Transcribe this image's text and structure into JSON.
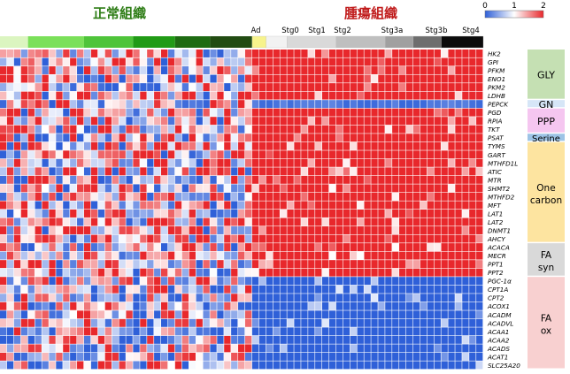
{
  "chart_data": {
    "type": "heatmap",
    "title_normal": "正常組織",
    "title_tumor": "腫瘍組織",
    "colorbar": {
      "ticks": [
        "0",
        "1",
        "2"
      ],
      "colors": [
        "#2f60d8",
        "#ffffff",
        "#e8282c"
      ]
    },
    "normal_sample_count": 36,
    "tumor_sample_count": 33,
    "normal_group_colors": [
      "#dbf5c0",
      "#7be05a",
      "#4fc43a",
      "#219b16",
      "#1e6b12",
      "#224c12"
    ],
    "stages": [
      {
        "label": "Ad",
        "color": "#f7f38c"
      },
      {
        "label": "Stg0",
        "color": "#f2f2f2"
      },
      {
        "label": "Stg1",
        "color": "#d9d9d9"
      },
      {
        "label": "Stg2",
        "color": "#bfbfbf"
      },
      {
        "label": "Stg3a",
        "color": "#a0a0a0"
      },
      {
        "label": "Stg3b",
        "color": "#6e6e6e"
      },
      {
        "label": "Stg4",
        "color": "#0c0c0c"
      }
    ],
    "genes": [
      "HK2",
      "GPI",
      "PFKM",
      "ENO1",
      "PKM2",
      "LDHB",
      "PEPCK",
      "PGD",
      "RPIA",
      "TKT",
      "PSAT",
      "TYMS",
      "GART",
      "MTHFD1L",
      "ATIC",
      "MTR",
      "SHMT2",
      "MTHFD2",
      "MFT",
      "LAT1",
      "LAT2",
      "DNMT1",
      "AHCY",
      "ACACA",
      "MECR",
      "PPT1",
      "PPT2",
      "PGC-1α",
      "CPT1A",
      "CPT2",
      "ACOX1",
      "ACADM",
      "ACADVL",
      "ACAA1",
      "ACAA2",
      "ACADS",
      "ACAT1",
      "SLC25A20"
    ],
    "pathways": [
      {
        "label": "GLY",
        "rows": 6,
        "color": "#c5e0b3"
      },
      {
        "label": "GN",
        "rows": 1,
        "color": "#d6e6f7"
      },
      {
        "label": "PPP",
        "rows": 3,
        "color": "#f5c6f0"
      },
      {
        "label": "Serine",
        "rows": 1,
        "color": "#9dc3e6"
      },
      {
        "label": "One carbon",
        "rows": 12,
        "color": "#fde4a0"
      },
      {
        "label": "FA syn",
        "rows": 4,
        "color": "#d9d9d9"
      },
      {
        "label": "FA ox",
        "rows": 11,
        "color": "#f8d0d0"
      }
    ],
    "pattern": {
      "normal_region": "mixed low/medium/high values (0–2)",
      "tumor_upper_rows": "high (≈2) for HK2 through PPT2, except PEPCK low",
      "tumor_lower_rows": "low (≈0) for PGC-1α through SLC25A20"
    }
  }
}
